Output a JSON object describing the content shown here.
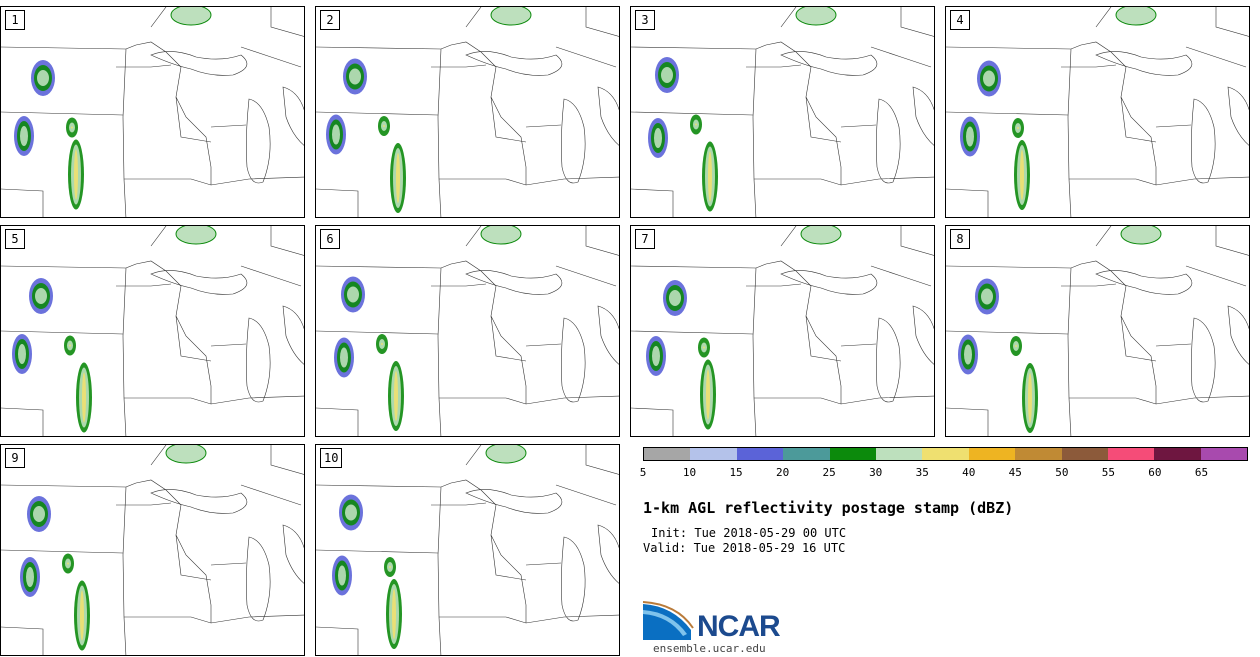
{
  "panels": [
    {
      "label": "1"
    },
    {
      "label": "2"
    },
    {
      "label": "3"
    },
    {
      "label": "4"
    },
    {
      "label": "5"
    },
    {
      "label": "6"
    },
    {
      "label": "7"
    },
    {
      "label": "8"
    },
    {
      "label": "9"
    },
    {
      "label": "10"
    }
  ],
  "colorbar": {
    "colors": [
      "#a6a6a6",
      "#b4c2ea",
      "#5b63d8",
      "#4c9a9a",
      "#0c8a0c",
      "#bde0bd",
      "#efe070",
      "#eeb422",
      "#c08a34",
      "#8c5a3a",
      "#f54c78",
      "#6e1640",
      "#a84aae"
    ],
    "ticks": [
      "5",
      "10",
      "15",
      "20",
      "25",
      "30",
      "35",
      "40",
      "45",
      "50",
      "55",
      "60",
      "65"
    ]
  },
  "title": "1-km AGL reflectivity postage stamp (dBZ)",
  "init": "Init: Tue 2018-05-29 00 UTC",
  "valid": "Valid: Tue 2018-05-29 16 UTC",
  "logo": {
    "text": "NCAR",
    "url": "ensemble.ucar.edu"
  }
}
